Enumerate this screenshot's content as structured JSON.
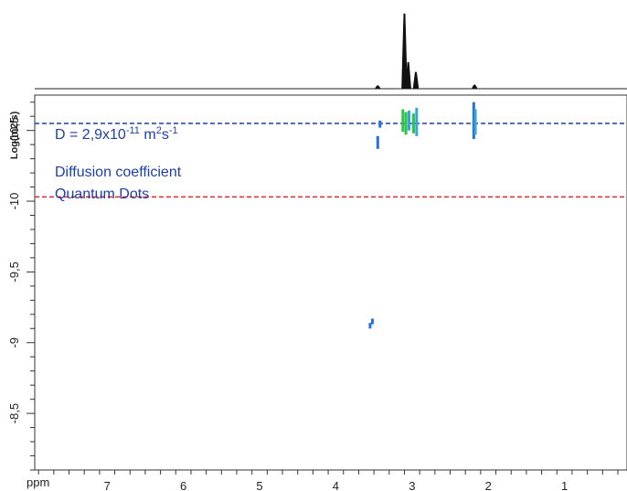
{
  "chart_data": {
    "type": "dosy",
    "xlabel": "ppm",
    "ylabel": "Log(m2/s)",
    "x_ticks": [
      7,
      6,
      5,
      4,
      3,
      2,
      1
    ],
    "y_ticks": [
      -10.5,
      -10,
      -9.5,
      -9,
      -8.5
    ],
    "y_tick_labels": [
      "-10,5",
      "-10",
      "-9,5",
      "-9",
      "-8,5"
    ],
    "xlim": [
      7.95,
      0.18
    ],
    "ylim": [
      -10.75,
      -8.1
    ],
    "x_inverted": true,
    "y_inverted": true,
    "annotations": {
      "d_value_prefix": "D = 2,9x10",
      "d_value_exp": "-11",
      "d_value_unit": " m",
      "d_value_unit_exp": "2",
      "d_value_s": "s",
      "d_value_s_exp": "-1",
      "line1": "Diffusion coefficient",
      "line2": "Quantum Dots"
    },
    "reference_lines": [
      {
        "y": -10.55,
        "color": "#1f3fa8",
        "style": "dashed"
      },
      {
        "y": -10.03,
        "color": "#e0262a",
        "style": "dashed"
      }
    ],
    "projection_peaks": [
      {
        "ppm": 3.45,
        "height": 0.04
      },
      {
        "ppm": 3.1,
        "height": 1.0
      },
      {
        "ppm": 3.05,
        "height": 0.35
      },
      {
        "ppm": 2.95,
        "height": 0.22
      },
      {
        "ppm": 2.18,
        "height": 0.05
      }
    ],
    "cross_peaks": [
      {
        "ppm": 3.45,
        "logD_min": -10.46,
        "logD_max": -10.37,
        "color": "#2a6fd6"
      },
      {
        "ppm": 3.42,
        "logD_min": -10.57,
        "logD_max": -10.52,
        "color": "#2a6fd6"
      },
      {
        "ppm": 3.12,
        "logD_min": -10.65,
        "logD_max": -10.49,
        "color": "#2ec44a"
      },
      {
        "ppm": 3.08,
        "logD_min": -10.63,
        "logD_max": -10.47,
        "color": "#2ec44a"
      },
      {
        "ppm": 3.04,
        "logD_min": -10.64,
        "logD_max": -10.5,
        "color": "#2ea8d6"
      },
      {
        "ppm": 2.98,
        "logD_min": -10.62,
        "logD_max": -10.48,
        "color": "#2ec44a"
      },
      {
        "ppm": 2.94,
        "logD_min": -10.66,
        "logD_max": -10.46,
        "color": "#2ea8d6"
      },
      {
        "ppm": 2.19,
        "logD_min": -10.7,
        "logD_max": -10.44,
        "color": "#2a6fd6"
      },
      {
        "ppm": 2.17,
        "logD_min": -10.65,
        "logD_max": -10.47,
        "color": "#2ea8d6"
      },
      {
        "ppm": 3.55,
        "logD_min": -9.14,
        "logD_max": -9.1,
        "color": "#2a6fd6"
      },
      {
        "ppm": 3.52,
        "logD_min": -9.17,
        "logD_max": -9.13,
        "color": "#2a6fd6"
      }
    ],
    "grid": false,
    "legend": "none"
  }
}
